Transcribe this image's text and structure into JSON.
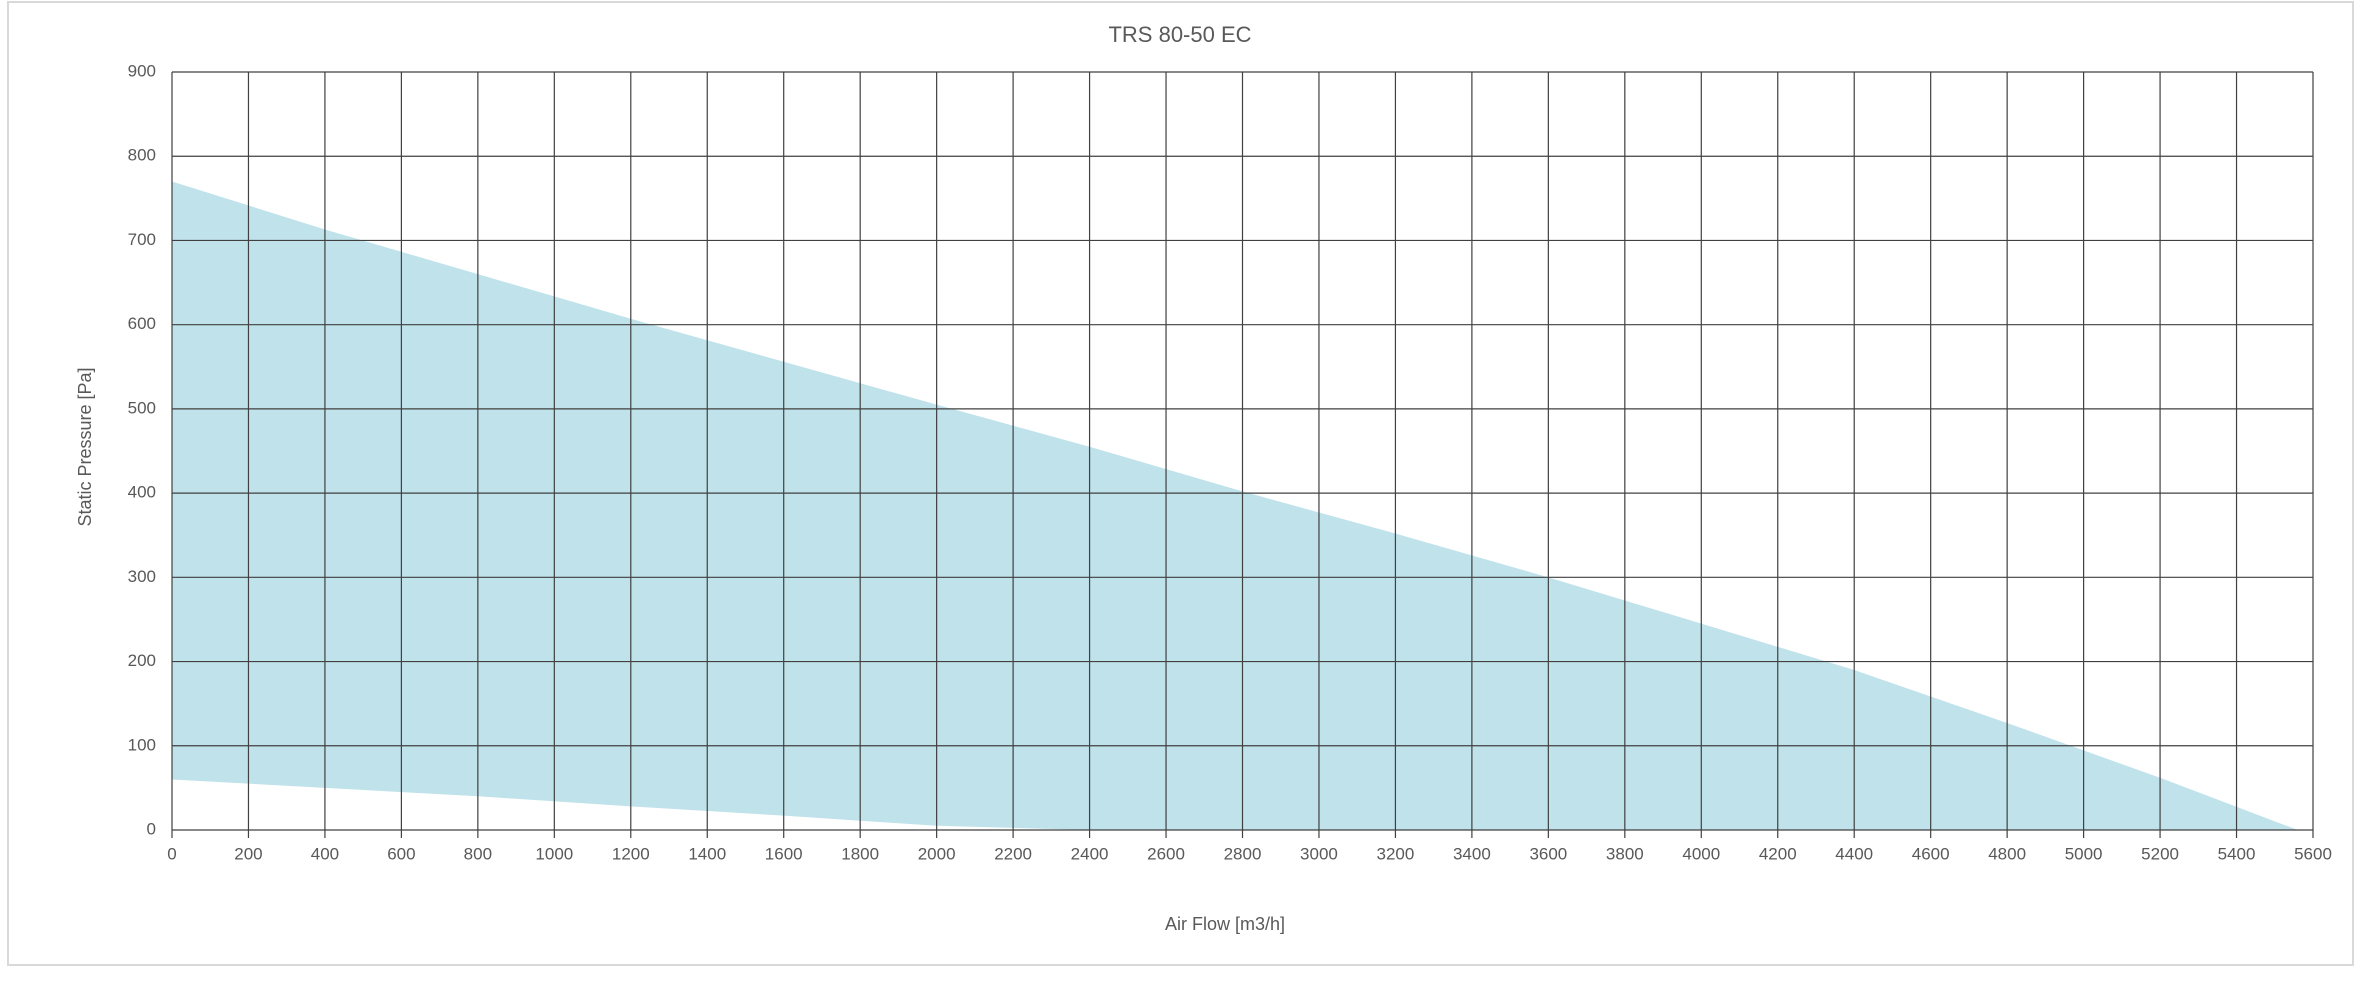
{
  "chart_data": {
    "type": "area",
    "title": "TRS 80-50 EC",
    "x_label": "Air Flow [m3/h]",
    "y_label": "Static Pressure [Pa]",
    "x": [
      0,
      400,
      800,
      1200,
      1600,
      2000,
      2400,
      2800,
      3200,
      3600,
      4000,
      4400,
      4800,
      5200,
      5560
    ],
    "series": [
      {
        "color": "#c0e2ea",
        "values": [
          770,
          713,
          660,
          607,
          556,
          505,
          455,
          402,
          352,
          300,
          245,
          190,
          127,
          62,
          0
        ]
      },
      {
        "color": "#ffffff",
        "values": [
          60,
          50,
          40,
          28,
          17,
          5,
          0,
          0,
          0,
          0,
          0,
          0,
          0,
          0,
          0
        ]
      }
    ],
    "xlim": [
      0,
      5600
    ],
    "ylim": [
      0,
      900
    ],
    "xticks": [
      0,
      200,
      400,
      600,
      800,
      1000,
      1200,
      1400,
      1600,
      1800,
      2000,
      2200,
      2400,
      2600,
      2800,
      3000,
      3200,
      3400,
      3600,
      3800,
      4000,
      4200,
      4400,
      4600,
      4800,
      5000,
      5200,
      5400,
      5600
    ],
    "yticks": [
      0,
      100,
      200,
      300,
      400,
      500,
      600,
      700,
      800,
      900
    ],
    "grid": true
  }
}
